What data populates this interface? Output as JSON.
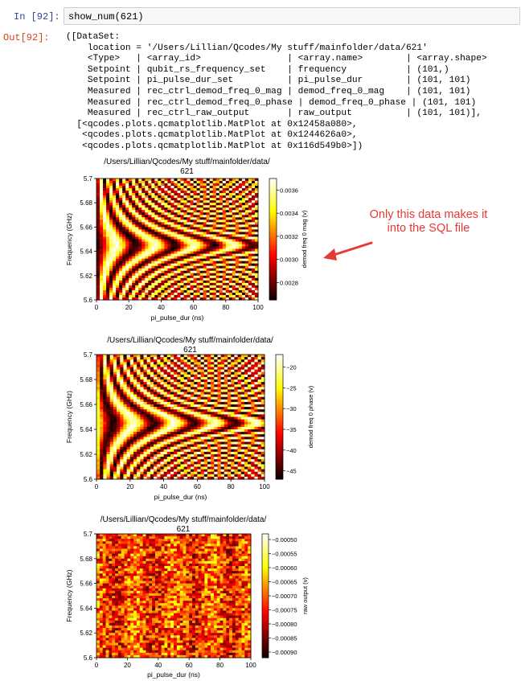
{
  "cell": {
    "in_prompt": "In [92]:",
    "out_prompt": "Out[92]:",
    "code": "show_num(621)"
  },
  "output": {
    "lines": [
      "([DataSet:",
      "    location = '/Users/Lillian/Qcodes/My stuff/mainfolder/data/621'",
      "    <Type>   | <array_id>                | <array.name>        | <array.shape>",
      "    Setpoint | qubit_rs_frequency_set    | frequency           | (101,)",
      "    Setpoint | pi_pulse_dur_set          | pi_pulse_dur        | (101, 101)",
      "    Measured | rec_ctrl_demod_freq_0_mag | demod_freq_0_mag    | (101, 101)",
      "    Measured | rec_ctrl_demod_freq_0_phase | demod_freq_0_phase | (101, 101)",
      "    Measured | rec_ctrl_raw_output       | raw_output          | (101, 101)],",
      "  [<qcodes.plots.qcmatplotlib.MatPlot at 0x12458a080>,",
      "   <qcodes.plots.qcmatplotlib.MatPlot at 0x1244626a0>,",
      "   <qcodes.plots.qcmatplotlib.MatPlot at 0x116d549b0>])"
    ]
  },
  "annotation": {
    "text": "Only this data makes it into the SQL file",
    "color": "#e53935"
  },
  "chart_data": [
    {
      "type": "heatmap",
      "title": "/Users/Lillian/Qcodes/My stuff/mainfolder/data/",
      "subtitle": "621",
      "xlabel": "pi_pulse_dur (ns)",
      "ylabel": "Frequency (GHz)",
      "colorbar_label": "demod freq 0 mag (v)",
      "xlim": [
        0,
        100
      ],
      "ylim": [
        5.6,
        5.7
      ],
      "xticks": [
        "0",
        "20",
        "40",
        "60",
        "80",
        "100"
      ],
      "yticks": [
        "5.6",
        "5.62",
        "5.64",
        "5.66",
        "5.68",
        "5.7"
      ],
      "clim": [
        0.00265,
        0.0037
      ],
      "cticks": [
        "0.0028",
        "0.0030",
        "0.0032",
        "0.0034",
        "0.0036"
      ],
      "cmap": "hot",
      "pattern": "chevron"
    },
    {
      "type": "heatmap",
      "title": "/Users/Lillian/Qcodes/My stuff/mainfolder/data/",
      "subtitle": "621",
      "xlabel": "pi_pulse_dur (ns)",
      "ylabel": "Frequency (GHz)",
      "colorbar_label": "demod freq 0 phase (v)",
      "xlim": [
        0,
        100
      ],
      "ylim": [
        5.6,
        5.7
      ],
      "xticks": [
        "0",
        "20",
        "40",
        "60",
        "80",
        "100"
      ],
      "yticks": [
        "5.6",
        "5.62",
        "5.64",
        "5.66",
        "5.68",
        "5.7"
      ],
      "clim": [
        -47,
        -17
      ],
      "cticks": [
        "−20",
        "−25",
        "−30",
        "−35",
        "−40",
        "−45"
      ],
      "cmap": "hot",
      "pattern": "chevron"
    },
    {
      "type": "heatmap",
      "title": "/Users/Lillian/Qcodes/My stuff/mainfolder/data/",
      "subtitle": "621",
      "xlabel": "pi_pulse_dur (ns)",
      "ylabel": "Frequency (GHz)",
      "colorbar_label": "raw output (v)",
      "xlim": [
        0,
        100
      ],
      "ylim": [
        5.6,
        5.7
      ],
      "xticks": [
        "0",
        "20",
        "40",
        "60",
        "80",
        "100"
      ],
      "yticks": [
        "5.6",
        "5.62",
        "5.64",
        "5.66",
        "5.68",
        "5.7"
      ],
      "clim": [
        -0.00092,
        -0.00048
      ],
      "cticks": [
        "−0.00050",
        "−0.00055",
        "−0.00060",
        "−0.00065",
        "−0.00070",
        "−0.00075",
        "−0.00080",
        "−0.00085",
        "−0.00090"
      ],
      "cmap": "hot",
      "pattern": "noise"
    }
  ]
}
